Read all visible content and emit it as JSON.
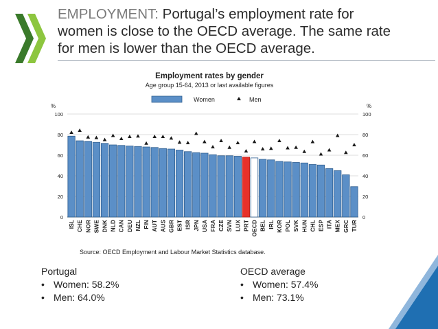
{
  "slide": {
    "title_highlight": "EMPLOYMENT:",
    "title_rest": " Portugal’s employment rate for women is close to the OECD average. The same rate for men is lower than the OECD average.",
    "title_line1_rest": " Portugal’s employment rate for",
    "title_line2": "women is close to the OECD average. The same rate",
    "title_line3": "for men is lower than the OECD average."
  },
  "chart_data": {
    "type": "bar",
    "title": "Employment rates by gender",
    "subtitle": "Age group 15-64, 2013 or last available figures",
    "ylabel_left": "%",
    "ylabel_right": "%",
    "ylim": [
      0,
      100
    ],
    "yticks": [
      0,
      20,
      40,
      60,
      80,
      100
    ],
    "legend": {
      "position": "top",
      "women": "Women",
      "men": "Men"
    },
    "source": "Source: OECD Employment and Labour Market Statistics database.",
    "categories": [
      "ISL",
      "CHE",
      "NOR",
      "SWE",
      "DNK",
      "NLD",
      "CAN",
      "DEU",
      "NZL",
      "FIN",
      "AUT",
      "AUS",
      "GBR",
      "EST",
      "ISR",
      "JPN",
      "USA",
      "FRA",
      "CZE",
      "SVN",
      "LUX",
      "PRT",
      "OECD",
      "BEL",
      "IRL",
      "KOR",
      "POL",
      "SVK",
      "HUN",
      "CHL",
      "ESP",
      "ITA",
      "MEX",
      "GRC",
      "TUR"
    ],
    "series": [
      {
        "name": "Women",
        "marker": "bar",
        "values": [
          78.5,
          74.0,
          73.5,
          72.5,
          71.5,
          70.0,
          69.5,
          69.0,
          68.5,
          68.0,
          67.5,
          66.5,
          66.0,
          65.0,
          63.5,
          62.5,
          62.0,
          60.5,
          59.5,
          59.5,
          59.0,
          58.2,
          57.4,
          56.0,
          55.5,
          54.0,
          53.5,
          53.0,
          52.5,
          51.0,
          50.5,
          47.0,
          45.0,
          41.0,
          29.5
        ]
      },
      {
        "name": "Men",
        "marker": "triangle",
        "values": [
          82.0,
          84.0,
          77.5,
          77.0,
          75.0,
          79.0,
          76.0,
          78.0,
          78.5,
          71.5,
          78.0,
          78.0,
          76.5,
          72.5,
          72.0,
          81.0,
          73.0,
          68.0,
          74.0,
          67.5,
          72.0,
          64.0,
          73.1,
          66.0,
          66.5,
          74.0,
          67.0,
          67.5,
          63.5,
          73.0,
          61.0,
          65.0,
          79.0,
          62.5,
          70.0
        ]
      }
    ],
    "colors": {
      "bar": "#5b8fc7",
      "bar_stroke": "#2f5e8f",
      "portugal": "#e8312a",
      "oecd": "#ffffff",
      "marker": "#1a1a1a",
      "grid": "#bdbdbd"
    },
    "highlight": {
      "PRT": "portugal",
      "OECD": "oecd"
    }
  },
  "notes": {
    "portugal": {
      "heading": "Portugal",
      "women": "Women: 58.2%",
      "men": "Men: 64.0%"
    },
    "oecd": {
      "heading": "OECD average",
      "women": "Women: 57.4%",
      "men": "Men: 73.1%"
    },
    "bullet": "•"
  },
  "colors": {
    "chevron_dark": "#3a7a2a",
    "chevron_light": "#8dc63f",
    "corner_blue": "#1f6fb2",
    "corner_light": "#8fb6dc"
  }
}
